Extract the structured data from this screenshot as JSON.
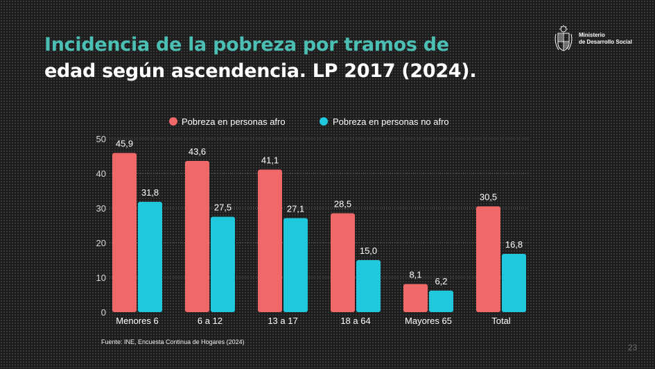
{
  "header": {
    "title_line1": "Incidencia de la pobreza por tramos de",
    "title_line2": "edad según ascendencia. LP 2017 (2024)."
  },
  "logo": {
    "line1": "Ministerio",
    "line2": "de Desarrollo Social"
  },
  "footer": {
    "source": "Fuente: INE, Encuesta Continua de Hogares (2024)",
    "page_number": "23"
  },
  "colors": {
    "afro": "#f06868",
    "no_afro": "#1fc8dc",
    "title_accent": "#4bbfb3"
  },
  "chart_data": {
    "type": "bar",
    "title": "Incidencia de la pobreza por tramos de edad según ascendencia. LP 2017 (2024).",
    "categories": [
      "Menores 6",
      "6 a 12",
      "13 a 17",
      "18 a 64",
      "Mayores 65",
      "Total"
    ],
    "series": [
      {
        "name": "Pobreza en personas afro",
        "values": [
          45.9,
          43.6,
          41.1,
          28.5,
          8.1,
          30.5
        ],
        "labels": [
          "45,9",
          "43,6",
          "41,1",
          "28,5",
          "8,1",
          "30,5"
        ]
      },
      {
        "name": "Pobreza en personas no afro",
        "values": [
          31.8,
          27.5,
          27.1,
          15.0,
          6.2,
          16.8
        ],
        "labels": [
          "31,8",
          "27,5",
          "27,1",
          "15,0",
          "6,2",
          "16,8"
        ]
      }
    ],
    "yticks": [
      0,
      10,
      20,
      30,
      40,
      50
    ],
    "ylim": [
      0,
      50
    ],
    "xlabel": "",
    "ylabel": "",
    "grid": true,
    "legend": "top-center"
  }
}
